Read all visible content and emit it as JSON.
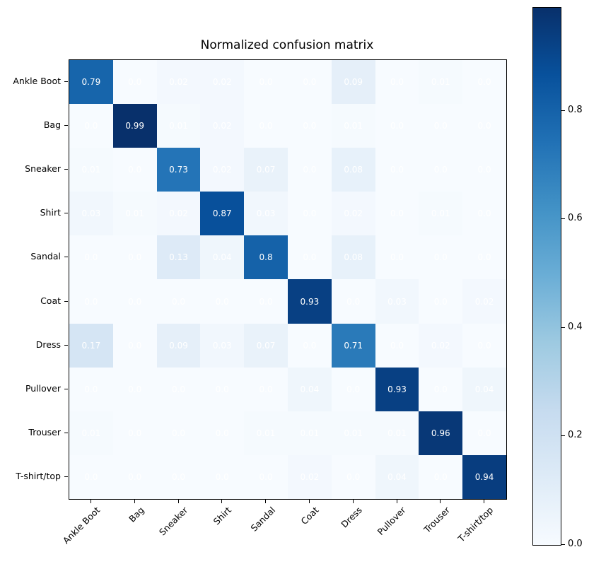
{
  "chart_data": {
    "type": "heatmap",
    "title": "Normalized confusion matrix",
    "x_tick_labels": [
      "Ankle Boot",
      "Bag",
      "Sneaker",
      "Shirt",
      "Sandal",
      "Coat",
      "Dress",
      "Pullover",
      "Trouser",
      "T-shirt/top"
    ],
    "y_tick_labels": [
      "Ankle Boot",
      "Bag",
      "Sneaker",
      "Shirt",
      "Sandal",
      "Coat",
      "Dress",
      "Pullover",
      "Trouser",
      "T-shirt/top"
    ],
    "values": [
      [
        0.79,
        0.0,
        0.02,
        0.02,
        0.0,
        0.0,
        0.09,
        0.0,
        0.01,
        0.0
      ],
      [
        0.0,
        0.99,
        0.01,
        0.02,
        0.0,
        0.0,
        0.01,
        0.0,
        0.0,
        0.0
      ],
      [
        0.01,
        0.0,
        0.73,
        0.02,
        0.07,
        0.0,
        0.08,
        0.0,
        0.0,
        0.0
      ],
      [
        0.03,
        0.01,
        0.02,
        0.87,
        0.03,
        0.0,
        0.02,
        0.0,
        0.01,
        0.0
      ],
      [
        0.0,
        0.0,
        0.13,
        0.04,
        0.8,
        0.0,
        0.08,
        0.0,
        0.0,
        0.0
      ],
      [
        0.0,
        0.0,
        0.0,
        0.0,
        0.0,
        0.93,
        0.0,
        0.03,
        0.0,
        0.02
      ],
      [
        0.17,
        0.0,
        0.09,
        0.03,
        0.07,
        0.0,
        0.71,
        0.0,
        0.02,
        0.0
      ],
      [
        0.0,
        0.0,
        0.0,
        0.0,
        0.0,
        0.04,
        0.0,
        0.93,
        0.0,
        0.04
      ],
      [
        0.01,
        0.0,
        0.0,
        0.0,
        0.01,
        0.01,
        0.01,
        0.01,
        0.96,
        0.0
      ],
      [
        0.0,
        0.0,
        0.0,
        0.0,
        0.0,
        0.02,
        0.0,
        0.04,
        0.0,
        0.94
      ]
    ],
    "cell_labels": [
      [
        "0.79",
        "0.0",
        "0.02",
        "0.02",
        "0.0",
        "0.0",
        "0.09",
        "0.0",
        "0.01",
        "0.0"
      ],
      [
        "0.0",
        "0.99",
        "0.01",
        "0.02",
        "0.0",
        "0.0",
        "0.01",
        "0.0",
        "0.0",
        "0.0"
      ],
      [
        "0.01",
        "0.0",
        "0.73",
        "0.02",
        "0.07",
        "0.0",
        "0.08",
        "0.0",
        "0.0",
        "0.0"
      ],
      [
        "0.03",
        "0.01",
        "0.02",
        "0.87",
        "0.03",
        "0.0",
        "0.02",
        "0.0",
        "0.01",
        "0.0"
      ],
      [
        "0.0",
        "0.0",
        "0.13",
        "0.04",
        "0.8",
        "0.0",
        "0.08",
        "0.0",
        "0.0",
        "0.0"
      ],
      [
        "0.0",
        "0.0",
        "0.0",
        "0.0",
        "0.0",
        "0.93",
        "0.0",
        "0.03",
        "0.0",
        "0.02"
      ],
      [
        "0.17",
        "0.0",
        "0.09",
        "0.03",
        "0.07",
        "0.0",
        "0.71",
        "0.0",
        "0.02",
        "0.0"
      ],
      [
        "0.0",
        "0.0",
        "0.0",
        "0.0",
        "0.0",
        "0.04",
        "0.0",
        "0.93",
        "0.0",
        "0.04"
      ],
      [
        "0.01",
        "0.0",
        "0.0",
        "0.0",
        "0.01",
        "0.01",
        "0.01",
        "0.01",
        "0.96",
        "0.0"
      ],
      [
        "0.0",
        "0.0",
        "0.0",
        "0.0",
        "0.0",
        "0.02",
        "0.0",
        "0.04",
        "0.0",
        "0.94"
      ]
    ],
    "colormap": "Blues",
    "colormap_colors": [
      "#f7fbff",
      "#deebf7",
      "#c6dbef",
      "#9ecae1",
      "#6baed6",
      "#4292c6",
      "#2171b5",
      "#08519c",
      "#08306b"
    ],
    "vmin": 0.0,
    "vmax": 0.99,
    "cell_text_color": "#ffffff",
    "axis_color": "#000000",
    "background_color": "#ffffff",
    "colorbar": {
      "position": "right",
      "tick_values": [
        0.0,
        0.2,
        0.4,
        0.6,
        0.8
      ],
      "tick_labels": [
        "0.0",
        "0.2",
        "0.4",
        "0.6",
        "0.8"
      ]
    },
    "grid": false,
    "x_label_rotation_deg": 45
  }
}
